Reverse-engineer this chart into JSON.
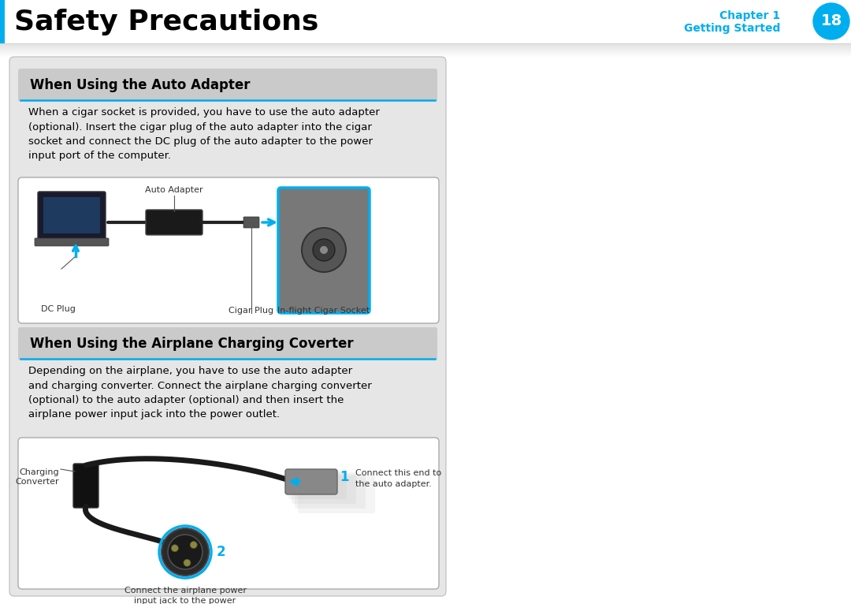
{
  "title": "Safety Precautions",
  "chapter_label": "Chapter 1",
  "chapter_sub": "Getting Started",
  "chapter_num": "18",
  "cyan_color": "#00AEEF",
  "black_color": "#000000",
  "white_color": "#FFFFFF",
  "bg_color": "#FFFFFF",
  "section_bg": "#E6E6E6",
  "section_header_bg": "#CACACA",
  "section1_title": "When Using the Auto Adapter",
  "section1_text": "When a cigar socket is provided, you have to use the auto adapter\n(optional). Insert the cigar plug of the auto adapter into the cigar\nsocket and connect the DC plug of the auto adapter to the power\ninput port of the computer.",
  "section2_title": "When Using the Airplane Charging Coverter",
  "section2_text": "Depending on the airplane, you have to use the auto adapter\nand charging converter. Connect the airplane charging converter\n(optional) to the auto adapter (optional) and then insert the\nairplane power input jack into the power outlet.",
  "img1_label_auto": "Auto Adapter",
  "img1_label_dc": "DC Plug",
  "img1_label_cigar": "Cigar Plug",
  "img1_label_socket": "In-flight Cigar Socket",
  "img2_label_conv": "Charging\nConverter",
  "img2_label_1": "1",
  "img2_text_1": "Connect this end to\nthe auto adapter.",
  "img2_label_2": "2",
  "img2_text_2": "Connect the airplane power\ninput jack to the power\noutlet of the airplane."
}
